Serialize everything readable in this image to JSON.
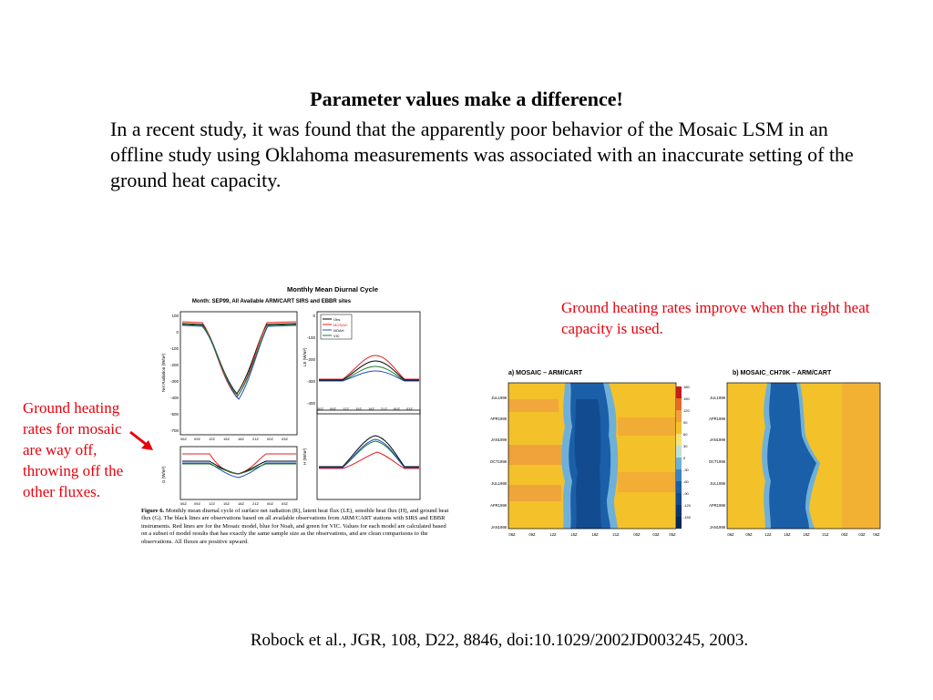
{
  "slide": {
    "heading": "Parameter values make a difference!",
    "paragraph": "In a recent study, it was found that the apparently poor behavior of the Mosaic LSM in an offline study using Oklahoma measurements was associated with an inaccurate setting of the ground heat capacity.",
    "note_right": "Ground heating rates improve when the right heat capacity is used.",
    "note_left": "Ground heating rates for mosaic are way off, throwing off the other fluxes.",
    "citation": "Robock et al., JGR, 108, D22, 8846, doi:10.1029/2002JD003245, 2003.",
    "note_color": "#e8000b"
  },
  "figure_left": {
    "title": "Monthly Mean Diurnal Cycle",
    "subtitle": "Month: SEP99, All Available ARM/CART SIRS and EBBR sites",
    "legend": [
      "Obs",
      "MOSAIC",
      "NOAH",
      "VIC"
    ],
    "legend_colors": [
      "#000000",
      "#e02020",
      "#2050c0",
      "#207a30"
    ],
    "panel_ylabels": [
      "Net Radiation (W/m²)",
      "LE (W/m²)",
      "G (W/m²)",
      "H (W/m²)"
    ],
    "x_ticks": [
      "06Z",
      "09Z",
      "12Z",
      "15Z",
      "18Z",
      "21Z",
      "00Z",
      "03Z",
      "06Z"
    ],
    "caption_label": "Figure 6.",
    "caption": "Monthly mean diurnal cycle of surface net radiation (R), latent heat flux (LE), sensible heat flux (H), and ground heat flux (G). The black lines are observations based on all available observations from ARM/CART stations with SIRS and EBBR instruments. Red lines are for the Mosaic model, blue for Noah, and green for VIC. Values for each model are calculated based on a subset of model results that has exactly the same sample size as the observations, and are clean comparisons to the observations. All fluxes are positive upward."
  },
  "figure_right": {
    "panel_a_title": "a) MOSAIC – ARM/CART",
    "panel_b_title": "b) MOSAIC_CH70K – ARM/CART",
    "y_ticks": [
      "JUL1999",
      "APR1999",
      "JAN1999",
      "OCT1998",
      "JUL1998",
      "APR1998",
      "JAN1998"
    ],
    "x_ticks": [
      "06Z",
      "09Z",
      "12Z",
      "15Z",
      "18Z",
      "21Z",
      "00Z",
      "03Z",
      "06Z"
    ],
    "colorbar_ticks": [
      "180",
      "150",
      "120",
      "90",
      "60",
      "30",
      "0",
      "-30",
      "-60",
      "-90",
      "-120",
      "-150"
    ]
  }
}
